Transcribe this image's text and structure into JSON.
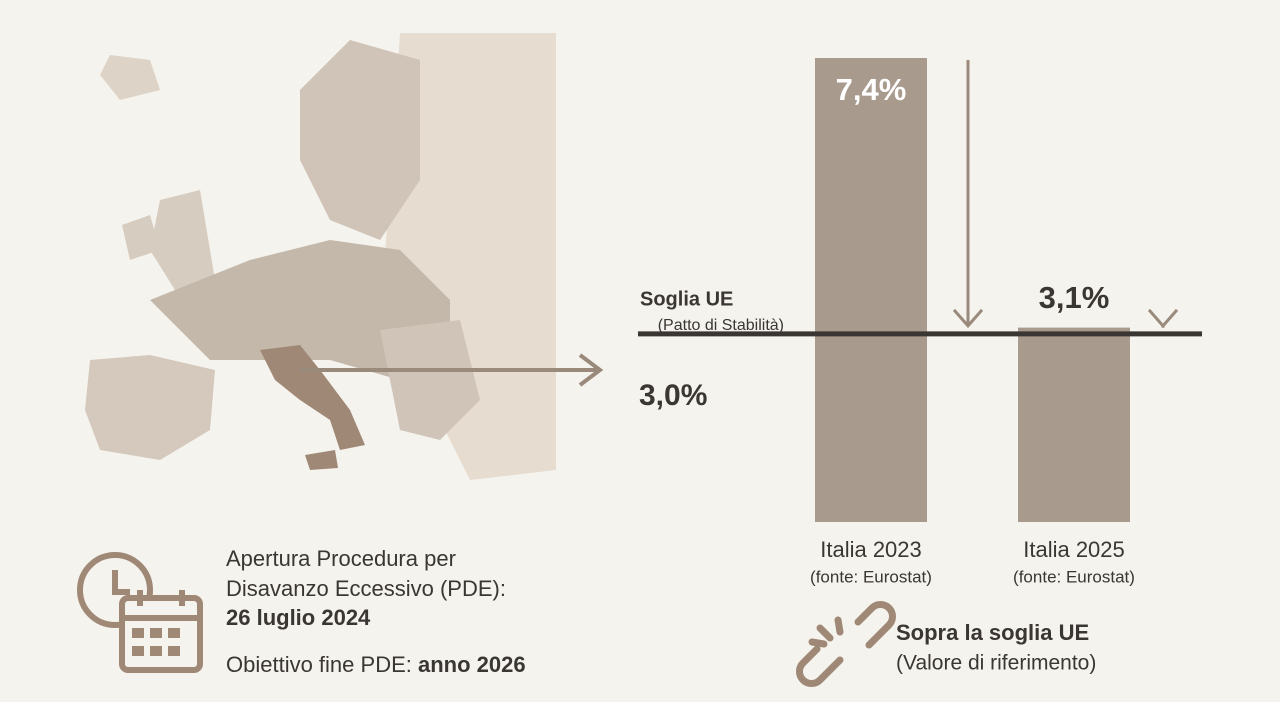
{
  "chart_data": {
    "type": "bar",
    "categories": [
      "Italia 2023",
      "Italia 2025"
    ],
    "category_notes": [
      "(fonte: Eurostat)",
      "(fonte: Eurostat)"
    ],
    "values": [
      7.4,
      3.1
    ],
    "value_labels": [
      "7,4%",
      "3,1%"
    ],
    "color": "#a89a8c",
    "threshold": {
      "value": 3.0,
      "label": "3,0%",
      "name": "Soglia UE",
      "note": "(Patto di Stabilità)"
    }
  },
  "procedure": {
    "line1": "Apertura Procedura per",
    "line2": "Disavanzo Eccessivo (PDE):",
    "date": "26 luglio 2024",
    "goal_label": "Obiettivo fine PDE:",
    "goal": "anno 2026"
  },
  "legend": {
    "title": "Sopra la soglia UE",
    "note": "(Valore di riferimento)"
  }
}
